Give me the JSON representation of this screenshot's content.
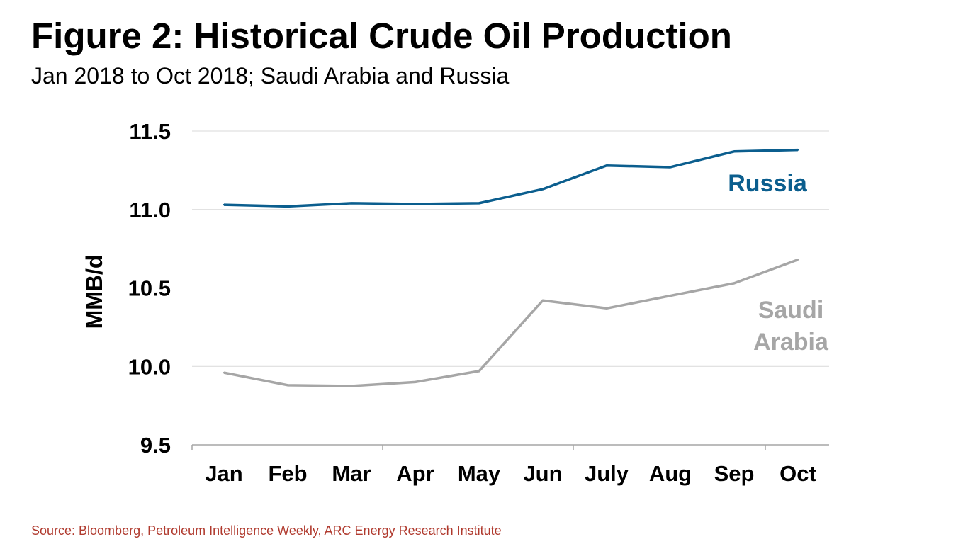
{
  "title": "Figure 2: Historical Crude Oil Production",
  "subtitle": "Jan 2018 to Oct 2018; Saudi Arabia and Russia",
  "source": "Source: Bloomberg, Petroleum Intelligence Weekly, ARC Energy Research Institute",
  "chart_data": {
    "type": "line",
    "title": "Figure 2: Historical Crude Oil Production",
    "subtitle": "Jan 2018 to Oct 2018; Saudi Arabia and Russia",
    "xlabel": "",
    "ylabel": "MMB/d",
    "categories": [
      "Jan",
      "Feb",
      "Mar",
      "Apr",
      "May",
      "Jun",
      "July",
      "Aug",
      "Sep",
      "Oct"
    ],
    "ylim": [
      9.5,
      11.5
    ],
    "yticks": [
      "11.5",
      "11.0",
      "10.5",
      "10.0",
      "9.5"
    ],
    "grid": true,
    "legend": "direct labels",
    "series": [
      {
        "name": "Russia",
        "label_lines": [
          "Russia"
        ],
        "color": "#0b5e8e",
        "values": [
          11.03,
          11.02,
          11.04,
          11.035,
          11.04,
          11.13,
          11.28,
          11.27,
          11.37,
          11.38
        ]
      },
      {
        "name": "Saudi Arabia",
        "label_lines": [
          "Saudi",
          "Arabia"
        ],
        "color": "#a6a6a6",
        "values": [
          9.96,
          9.88,
          9.875,
          9.9,
          9.97,
          10.42,
          10.37,
          10.45,
          10.53,
          10.68
        ]
      }
    ]
  }
}
